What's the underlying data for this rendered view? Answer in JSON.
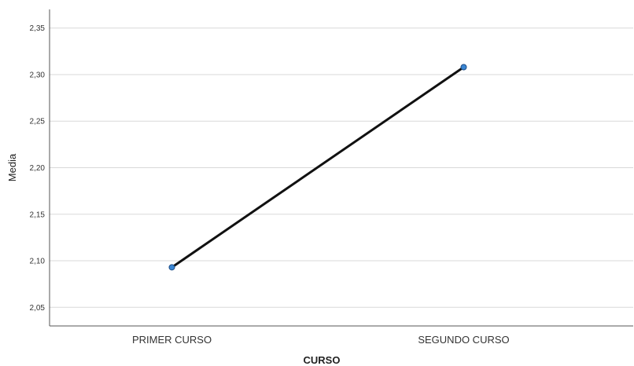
{
  "chart_data": {
    "type": "line",
    "title": "",
    "xlabel": "CURSO",
    "ylabel": "Media",
    "categories": [
      "PRIMER CURSO",
      "SEGUNDO CURSO"
    ],
    "series": [
      {
        "values": [
          2.093,
          2.308
        ]
      }
    ],
    "ylim": [
      2.03,
      2.37
    ],
    "yticks": [
      "2,05",
      "2,10",
      "2,15",
      "2,20",
      "2,25",
      "2,30",
      "2,35"
    ],
    "ytick_values": [
      2.05,
      2.1,
      2.15,
      2.2,
      2.25,
      2.3,
      2.35
    ],
    "grid": true,
    "legend": "none"
  },
  "colors": {
    "line": "#111111",
    "marker_fill": "#3a86d4",
    "marker_stroke": "#1f4e86",
    "grid": "#d9d9d9",
    "axis": "#555555"
  }
}
